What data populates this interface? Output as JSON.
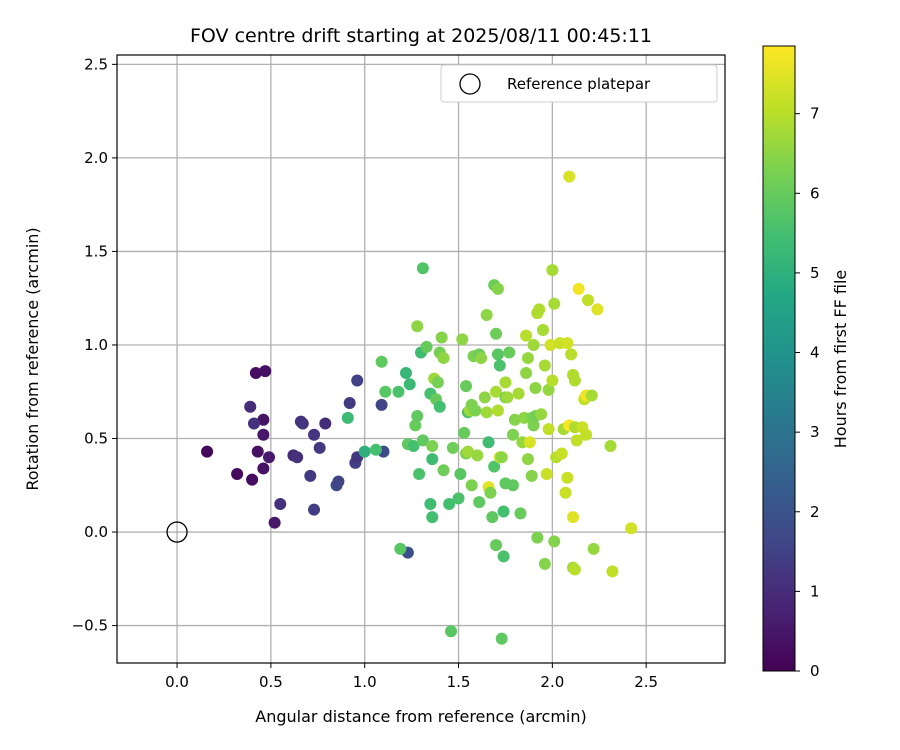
{
  "chart_data": {
    "type": "scatter",
    "title": "FOV centre drift starting at 2025/08/11 00:45:11",
    "xlabel": "Angular distance from reference (arcmin)",
    "ylabel": "Rotation from reference (arcmin)",
    "xlim": [
      -0.32,
      2.92
    ],
    "ylim": [
      -0.7,
      2.55
    ],
    "xticks": [
      0.0,
      0.5,
      1.0,
      1.5,
      2.0,
      2.5
    ],
    "xtick_labels": [
      "0.0",
      "0.5",
      "1.0",
      "1.5",
      "2.0",
      "2.5"
    ],
    "yticks": [
      -0.5,
      0.0,
      0.5,
      1.0,
      1.5,
      2.0,
      2.5
    ],
    "ytick_labels": [
      "−0.5",
      "0.0",
      "0.5",
      "1.0",
      "1.5",
      "2.0",
      "2.5"
    ],
    "grid": true,
    "legend": {
      "position": "top-right",
      "entries": [
        "Reference platepar"
      ]
    },
    "reference_point": {
      "x": 0.0,
      "y": 0.0,
      "marker": "open-circle"
    },
    "colorbar": {
      "label": "Hours from first FF file",
      "colormap": "viridis",
      "range": [
        0,
        7.85
      ],
      "ticks": [
        0,
        1,
        2,
        3,
        4,
        5,
        6,
        7
      ],
      "tick_labels": [
        "0",
        "1",
        "2",
        "3",
        "4",
        "5",
        "6",
        "7"
      ]
    },
    "points": [
      [
        0.16,
        0.43,
        0.15
      ],
      [
        0.32,
        0.31,
        0.2
      ],
      [
        0.4,
        0.28,
        0.25
      ],
      [
        0.42,
        0.85,
        0.3
      ],
      [
        0.47,
        0.86,
        0.35
      ],
      [
        0.43,
        0.43,
        0.35
      ],
      [
        0.46,
        0.34,
        0.4
      ],
      [
        0.46,
        0.6,
        0.45
      ],
      [
        0.46,
        0.52,
        0.5
      ],
      [
        0.49,
        0.4,
        0.55
      ],
      [
        0.52,
        0.05,
        0.5
      ],
      [
        0.39,
        0.67,
        1.0
      ],
      [
        0.41,
        0.58,
        1.1
      ],
      [
        0.55,
        0.15,
        1.1
      ],
      [
        0.62,
        0.41,
        1.0
      ],
      [
        0.64,
        0.4,
        1.1
      ],
      [
        0.66,
        0.59,
        1.15
      ],
      [
        0.67,
        0.58,
        1.2
      ],
      [
        0.71,
        0.3,
        1.3
      ],
      [
        0.73,
        0.52,
        1.2
      ],
      [
        0.76,
        0.45,
        1.3
      ],
      [
        0.79,
        0.58,
        1.0
      ],
      [
        0.73,
        0.12,
        1.4
      ],
      [
        0.85,
        0.25,
        1.7
      ],
      [
        0.86,
        0.27,
        1.6
      ],
      [
        0.92,
        0.69,
        1.3
      ],
      [
        0.96,
        0.81,
        1.5
      ],
      [
        0.95,
        0.37,
        1.45
      ],
      [
        0.96,
        0.4,
        1.2
      ],
      [
        1.09,
        0.68,
        1.6
      ],
      [
        1.1,
        0.43,
        1.8
      ],
      [
        1.23,
        -0.11,
        1.9
      ],
      [
        0.91,
        0.61,
        5.3
      ],
      [
        1.0,
        0.43,
        5.0
      ],
      [
        1.06,
        0.44,
        5.5
      ],
      [
        1.09,
        0.91,
        5.9
      ],
      [
        1.11,
        0.75,
        5.8
      ],
      [
        1.18,
        0.75,
        5.6
      ],
      [
        1.19,
        -0.09,
        5.8
      ],
      [
        1.22,
        0.85,
        5.2
      ],
      [
        1.24,
        0.79,
        5.3
      ],
      [
        1.23,
        0.47,
        5.9
      ],
      [
        1.26,
        0.46,
        5.5
      ],
      [
        1.27,
        0.57,
        6.0
      ],
      [
        1.28,
        0.62,
        5.9
      ],
      [
        1.28,
        1.1,
        6.5
      ],
      [
        1.29,
        0.31,
        5.6
      ],
      [
        1.3,
        0.96,
        5.4
      ],
      [
        1.31,
        1.41,
        5.7
      ],
      [
        1.31,
        0.49,
        5.9
      ],
      [
        1.33,
        0.99,
        6.0
      ],
      [
        1.35,
        0.74,
        5.5
      ],
      [
        1.35,
        0.15,
        5.4
      ],
      [
        1.36,
        0.08,
        5.5
      ],
      [
        1.36,
        0.39,
        5.4
      ],
      [
        1.36,
        0.46,
        6.3
      ],
      [
        1.37,
        0.82,
        6.7
      ],
      [
        1.38,
        0.71,
        6.0
      ],
      [
        1.39,
        0.8,
        6.2
      ],
      [
        1.4,
        0.67,
        5.5
      ],
      [
        1.4,
        0.96,
        6.2
      ],
      [
        1.41,
        1.04,
        6.4
      ],
      [
        1.42,
        0.33,
        6.1
      ],
      [
        1.42,
        0.93,
        6.5
      ],
      [
        1.45,
        0.15,
        5.5
      ],
      [
        1.47,
        0.45,
        6.1
      ],
      [
        1.46,
        -0.53,
        5.8
      ],
      [
        1.5,
        0.18,
        5.6
      ],
      [
        1.51,
        0.31,
        5.8
      ],
      [
        1.52,
        1.03,
        6.5
      ],
      [
        1.53,
        0.53,
        6.0
      ],
      [
        1.54,
        0.78,
        6.0
      ],
      [
        1.54,
        0.42,
        6.3
      ],
      [
        1.55,
        0.64,
        5.6
      ],
      [
        1.55,
        0.43,
        6.7
      ],
      [
        1.56,
        0.65,
        6.7
      ],
      [
        1.57,
        0.68,
        6.3
      ],
      [
        1.57,
        0.25,
        6.3
      ],
      [
        1.58,
        0.94,
        6.3
      ],
      [
        1.59,
        0.65,
        6.3
      ],
      [
        1.6,
        0.41,
        6.6
      ],
      [
        1.61,
        0.95,
        6.1
      ],
      [
        1.61,
        0.16,
        5.9
      ],
      [
        1.62,
        0.93,
        6.5
      ],
      [
        1.64,
        0.72,
        6.5
      ],
      [
        1.65,
        1.16,
        6.5
      ],
      [
        1.65,
        0.64,
        6.7
      ],
      [
        1.66,
        0.24,
        7.5
      ],
      [
        1.66,
        0.48,
        5.4
      ],
      [
        1.67,
        0.21,
        6.3
      ],
      [
        1.68,
        0.08,
        5.9
      ],
      [
        1.69,
        1.32,
        6.1
      ],
      [
        1.69,
        0.35,
        5.7
      ],
      [
        1.7,
        -0.07,
        6.0
      ],
      [
        1.7,
        0.75,
        6.8
      ],
      [
        1.7,
        1.06,
        6.1
      ],
      [
        1.71,
        0.95,
        5.8
      ],
      [
        1.71,
        0.65,
        6.9
      ],
      [
        1.71,
        1.3,
        6.4
      ],
      [
        1.72,
        0.89,
        5.6
      ],
      [
        1.72,
        0.4,
        7.3
      ],
      [
        1.73,
        0.4,
        6.5
      ],
      [
        1.73,
        -0.57,
        5.9
      ],
      [
        1.74,
        0.11,
        5.5
      ],
      [
        1.74,
        -0.13,
        5.6
      ],
      [
        1.75,
        0.72,
        6.2
      ],
      [
        1.75,
        0.26,
        5.9
      ],
      [
        1.75,
        0.8,
        6.8
      ],
      [
        1.76,
        0.72,
        6.7
      ],
      [
        1.77,
        0.96,
        6.0
      ],
      [
        1.79,
        0.25,
        5.9
      ],
      [
        1.79,
        0.52,
        6.3
      ],
      [
        1.8,
        0.6,
        6.4
      ],
      [
        1.82,
        0.74,
        6.8
      ],
      [
        1.83,
        0.1,
        6.0
      ],
      [
        1.84,
        0.48,
        6.6
      ],
      [
        1.85,
        0.61,
        6.5
      ],
      [
        1.86,
        0.85,
        6.5
      ],
      [
        1.86,
        1.05,
        7.0
      ],
      [
        1.87,
        0.39,
        6.5
      ],
      [
        1.87,
        0.93,
        6.6
      ],
      [
        1.88,
        0.48,
        7.4
      ],
      [
        1.89,
        0.61,
        6.3
      ],
      [
        1.89,
        0.3,
        6.4
      ],
      [
        1.9,
        0.57,
        6.3
      ],
      [
        1.9,
        1.0,
        6.7
      ],
      [
        1.91,
        0.62,
        6.2
      ],
      [
        1.91,
        0.77,
        6.5
      ],
      [
        1.92,
        -0.03,
        6.3
      ],
      [
        1.92,
        1.17,
        6.9
      ],
      [
        1.93,
        1.19,
        6.9
      ],
      [
        1.94,
        0.63,
        6.6
      ],
      [
        1.95,
        1.08,
        6.8
      ],
      [
        1.96,
        0.89,
        6.8
      ],
      [
        1.96,
        -0.17,
        6.4
      ],
      [
        1.97,
        0.31,
        7.2
      ],
      [
        1.98,
        0.76,
        6.6
      ],
      [
        1.98,
        0.55,
        7.1
      ],
      [
        1.99,
        1.0,
        7.3
      ],
      [
        2.0,
        1.4,
        6.8
      ],
      [
        2.0,
        0.81,
        7.0
      ],
      [
        2.01,
        1.22,
        6.8
      ],
      [
        2.01,
        -0.05,
        6.4
      ],
      [
        2.02,
        0.4,
        7.0
      ],
      [
        2.04,
        1.01,
        7.2
      ],
      [
        2.05,
        0.42,
        7.2
      ],
      [
        2.06,
        0.55,
        6.8
      ],
      [
        2.07,
        0.21,
        7.2
      ],
      [
        2.08,
        0.29,
        7.2
      ],
      [
        2.08,
        1.01,
        7.3
      ],
      [
        2.09,
        1.9,
        7.4
      ],
      [
        2.09,
        0.57,
        7.8
      ],
      [
        2.1,
        0.95,
        7.0
      ],
      [
        2.11,
        0.84,
        6.9
      ],
      [
        2.11,
        -0.19,
        6.8
      ],
      [
        2.11,
        0.08,
        7.5
      ],
      [
        2.12,
        0.81,
        6.9
      ],
      [
        2.12,
        -0.2,
        7.0
      ],
      [
        2.12,
        0.56,
        6.9
      ],
      [
        2.13,
        0.49,
        7.1
      ],
      [
        2.14,
        1.3,
        7.7
      ],
      [
        2.16,
        0.56,
        7.2
      ],
      [
        2.17,
        0.71,
        7.1
      ],
      [
        2.18,
        0.73,
        7.7
      ],
      [
        2.18,
        0.52,
        7.1
      ],
      [
        2.19,
        1.24,
        7.1
      ],
      [
        2.21,
        0.73,
        6.8
      ],
      [
        2.22,
        -0.09,
        6.6
      ],
      [
        2.24,
        1.19,
        7.5
      ],
      [
        2.31,
        0.46,
        6.8
      ],
      [
        2.32,
        -0.21,
        7.1
      ],
      [
        2.42,
        0.02,
        7.3
      ]
    ]
  }
}
